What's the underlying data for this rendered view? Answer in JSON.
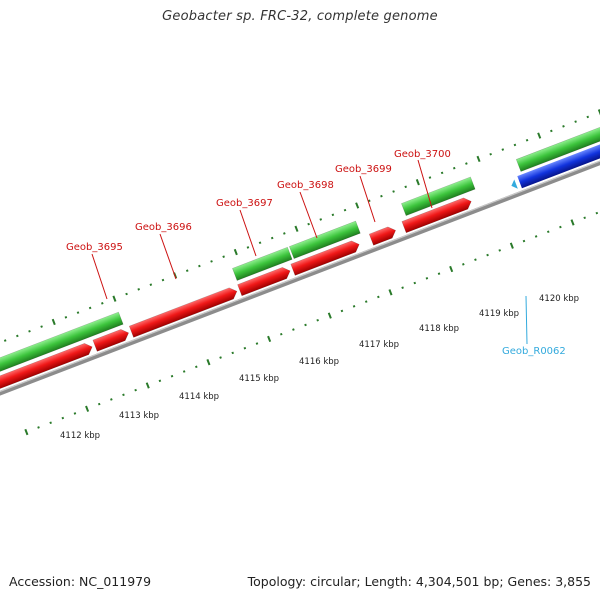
{
  "title": "Geobacter sp. FRC-32, complete genome",
  "accession": "Accession: NC_011979",
  "stats": "Topology: circular; Length: 4,304,501 bp; Genes: 3,855",
  "colors": {
    "background": "#ffffff",
    "backbone": "#8c8c8c",
    "tick": "#2a7a2a",
    "forward_gene": "#3cc43c",
    "reverse_gene": "#ee1111",
    "rna_gene": "#1133dd",
    "gene_label": "#cc1111",
    "rna_label": "#33aadd"
  },
  "scale_labels": [
    "4112 kbp",
    "4113 kbp",
    "4114 kbp",
    "4115 kbp",
    "4116 kbp",
    "4117 kbp",
    "4118 kbp",
    "4119 kbp",
    "4120 kbp"
  ],
  "gene_labels": [
    {
      "id": "geob-3695",
      "text": "Geob_3695"
    },
    {
      "id": "geob-3696",
      "text": "Geob_3696"
    },
    {
      "id": "geob-3697",
      "text": "Geob_3697"
    },
    {
      "id": "geob-3698",
      "text": "Geob_3698"
    },
    {
      "id": "geob-3699",
      "text": "Geob_3699"
    },
    {
      "id": "geob-3700",
      "text": "Geob_3700"
    },
    {
      "id": "geob-r0062",
      "text": "Geob_R0062"
    }
  ]
}
